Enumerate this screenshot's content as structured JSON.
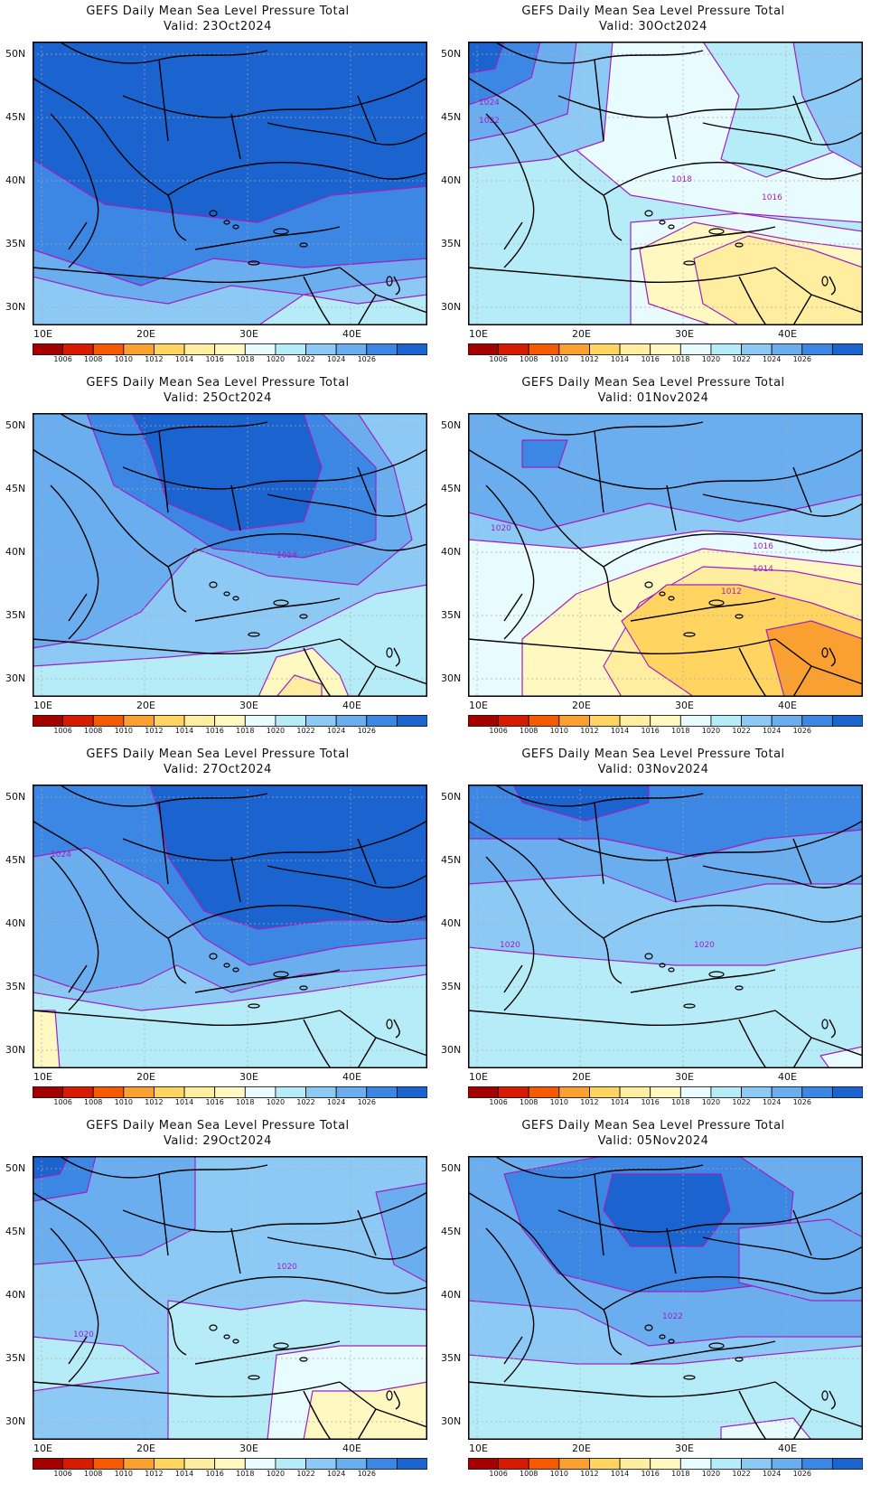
{
  "colors": {
    "land_outline": "#000000",
    "contour": "#a020c0",
    "contour_label": "#a020c0",
    "gridline": "#aaaaaa"
  },
  "colorbar": {
    "labels": [
      "1006",
      "1008",
      "1010",
      "1012",
      "1014",
      "1016",
      "1018",
      "1020",
      "1022",
      "1024",
      "1026"
    ],
    "colors": [
      "#a50000",
      "#d71a00",
      "#f55a00",
      "#f9a030",
      "#ffd460",
      "#ffeea0",
      "#fff8c0",
      "#e8fbff",
      "#b6ecf7",
      "#8ccaf5",
      "#6aaef0",
      "#3c86e4",
      "#1b63cf"
    ]
  },
  "axes": {
    "lat_labels": [
      "50N",
      "45N",
      "40N",
      "35N",
      "30N"
    ],
    "lon_labels": [
      "10E",
      "20E",
      "30E",
      "40E"
    ]
  },
  "panels": [
    {
      "title": "GEFS Daily Mean Sea Level Pressure Total",
      "valid": "Valid: 23Oct2024",
      "dominant": "1024",
      "contour_labels": []
    },
    {
      "title": "GEFS Daily Mean Sea Level Pressure Total",
      "valid": "Valid: 30Oct2024",
      "dominant": "1018",
      "contour_labels": [
        "1024",
        "1022",
        "1018",
        "1016"
      ]
    },
    {
      "title": "GEFS Daily Mean Sea Level Pressure Total",
      "valid": "Valid: 25Oct2024",
      "dominant": "1022",
      "contour_labels": [
        "1024"
      ]
    },
    {
      "title": "GEFS Daily Mean Sea Level Pressure Total",
      "valid": "Valid: 01Nov2024",
      "dominant": "1018",
      "contour_labels": [
        "1020",
        "1016",
        "1014",
        "1012"
      ]
    },
    {
      "title": "GEFS Daily Mean Sea Level Pressure Total",
      "valid": "Valid: 27Oct2024",
      "dominant": "1024",
      "contour_labels": [
        "1024"
      ]
    },
    {
      "title": "GEFS Daily Mean Sea Level Pressure Total",
      "valid": "Valid: 03Nov2024",
      "dominant": "1020",
      "contour_labels": [
        "1020",
        "1020"
      ]
    },
    {
      "title": "GEFS Daily Mean Sea Level Pressure Total",
      "valid": "Valid: 29Oct2024",
      "dominant": "1020",
      "contour_labels": [
        "1020",
        "1020"
      ]
    },
    {
      "title": "GEFS Daily Mean Sea Level Pressure Total",
      "valid": "Valid: 05Nov2024",
      "dominant": "1022",
      "contour_labels": [
        "1022"
      ]
    }
  ]
}
